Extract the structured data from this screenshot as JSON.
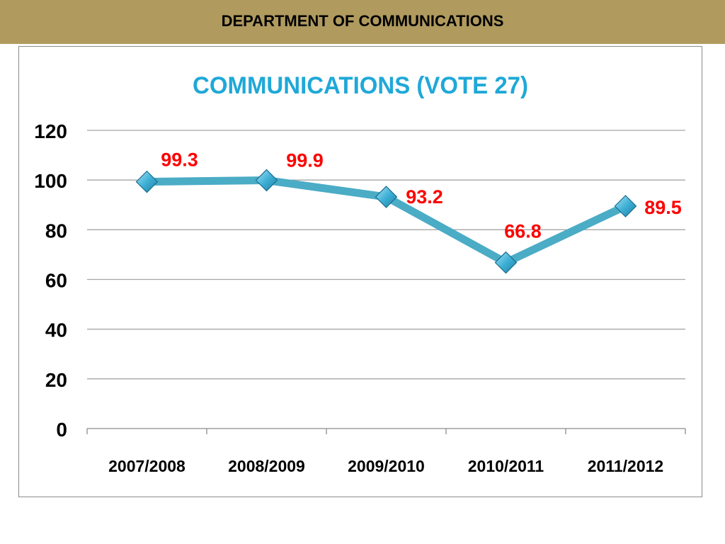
{
  "header": {
    "title": "DEPARTMENT OF COMMUNICATIONS"
  },
  "colors": {
    "header_background": "#b09a5e",
    "line": "#4bacc6",
    "marker": "#4bacc6",
    "data_label": "#ff0000",
    "title": "#1fa8d8",
    "gridline": "#a6a6a6"
  },
  "chart_data": {
    "type": "line",
    "title": "COMMUNICATIONS (VOTE 27)",
    "xlabel": "",
    "ylabel": "",
    "categories": [
      "2007/2008",
      "2008/2009",
      "2009/2010",
      "2010/2011",
      "2011/2012"
    ],
    "series": [
      {
        "values": [
          99.3,
          99.9,
          93.2,
          66.8,
          89.5
        ],
        "data_labels": [
          "99.3",
          "99.9",
          "93.2",
          "66.8",
          "89.5"
        ]
      }
    ],
    "y_ticks": [
      "0",
      "20",
      "40",
      "60",
      "80",
      "100",
      "120"
    ],
    "ylim": [
      0,
      120
    ],
    "grid": true,
    "legend": "none",
    "marker": "diamond"
  }
}
